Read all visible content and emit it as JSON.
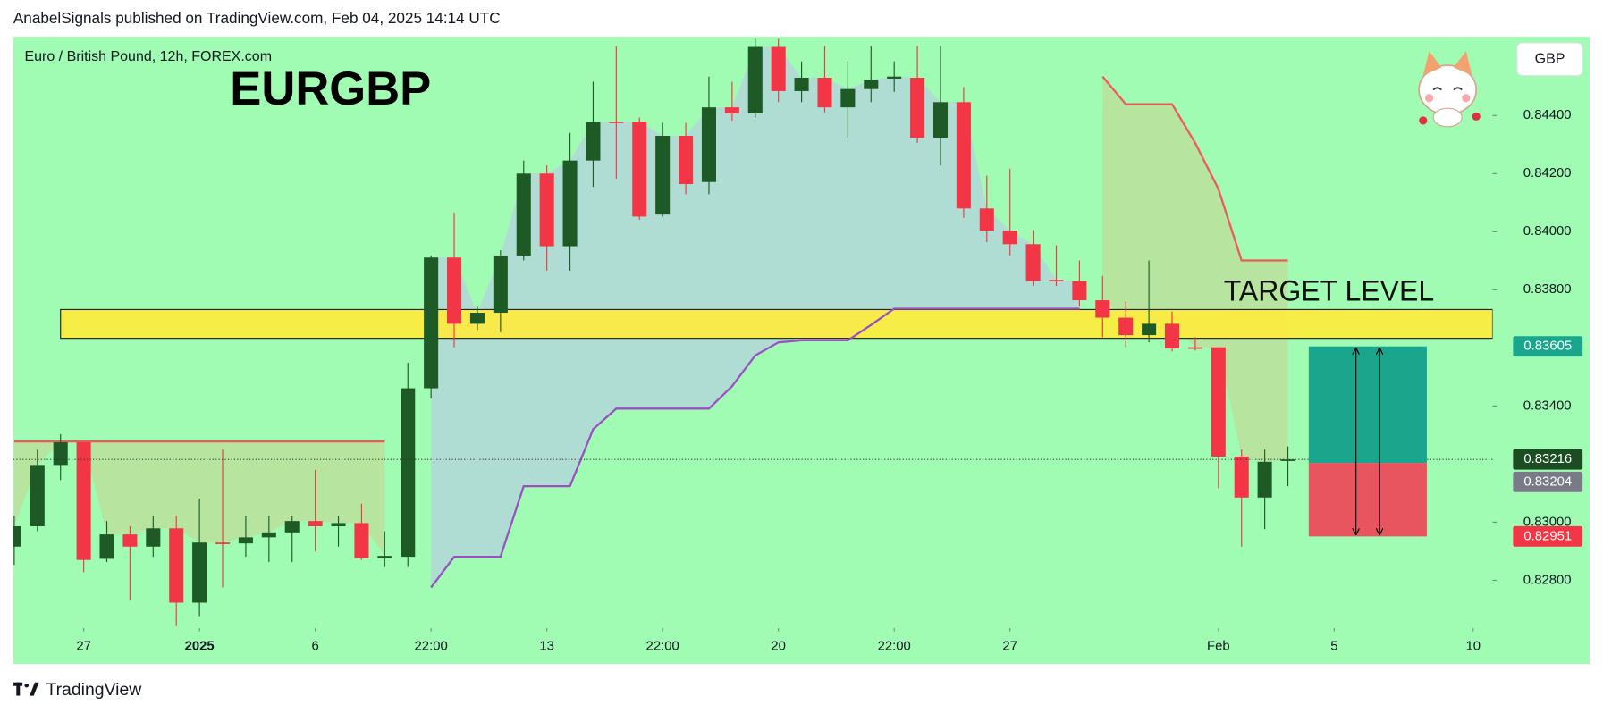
{
  "header": "AnabelSignals published on TradingView.com, Feb 04, 2025 14:14 UTC",
  "footer": "TradingView",
  "chart_data": {
    "type": "candlestick",
    "title": "EURGBP",
    "symbol_label": "Euro / British Pound, 12h, FOREX.com",
    "currency": "GBP",
    "grid": false,
    "up_color": "#1e5a25",
    "down_color": "#f23645",
    "x": [
      0,
      1,
      2,
      3,
      4,
      5,
      6,
      7,
      8,
      9,
      10,
      11,
      12,
      13,
      14,
      15,
      16,
      17,
      18,
      19,
      20,
      21,
      22,
      23,
      24,
      25,
      26,
      27,
      28,
      29,
      30,
      31,
      32,
      33,
      34,
      35,
      36,
      37,
      38,
      39,
      40,
      41,
      42,
      43,
      44,
      45,
      46,
      47,
      48,
      49,
      50,
      51,
      52,
      53,
      54,
      55
    ],
    "open": [
      0.82916,
      0.82986,
      0.83197,
      0.83275,
      0.82874,
      0.82958,
      0.82916,
      0.82979,
      0.82723,
      0.8293,
      0.82927,
      0.82948,
      0.82965,
      0.83004,
      0.82986,
      0.82997,
      0.82877,
      0.82881,
      0.83461,
      0.83911,
      0.83683,
      0.83721,
      0.83918,
      0.842,
      0.8395,
      0.84245,
      0.84379,
      0.84379,
      0.84059,
      0.8433,
      0.84171,
      0.84428,
      0.84407,
      0.84636,
      0.84484,
      0.8453,
      0.84428,
      0.84491,
      0.84527,
      0.8453,
      0.84323,
      0.84446,
      0.8408,
      0.84003,
      0.83957,
      0.83834,
      0.8383,
      0.83764,
      0.83704,
      0.83644,
      0.83683,
      0.83602,
      0.83602,
      0.83226,
      0.83085,
      0.83211
    ],
    "high": [
      0.83022,
      0.8325,
      0.83303,
      0.83275,
      0.83004,
      0.82986,
      0.83022,
      0.83022,
      0.83081,
      0.8325,
      0.83022,
      0.83022,
      0.83022,
      0.8318,
      0.83022,
      0.83064,
      0.82969,
      0.83549,
      0.83918,
      0.84066,
      0.83742,
      0.83936,
      0.84245,
      0.84228,
      0.8434,
      0.84516,
      0.84639,
      0.84393,
      0.84375,
      0.84375,
      0.84534,
      0.84516,
      0.84664,
      0.84664,
      0.84586,
      0.84639,
      0.84586,
      0.84639,
      0.84586,
      0.84639,
      0.84639,
      0.84498,
      0.84193,
      0.84217,
      0.84006,
      0.83953,
      0.83901,
      0.83848,
      0.8376,
      0.83901,
      0.83725,
      0.83637,
      0.83602,
      0.8325,
      0.8325,
      0.83261
    ],
    "low": [
      0.82853,
      0.82969,
      0.83145,
      0.82828,
      0.82863,
      0.8273,
      0.82881,
      0.82642,
      0.82677,
      0.82775,
      0.82881,
      0.82863,
      0.82863,
      0.82899,
      0.82916,
      0.8287,
      0.82846,
      0.82846,
      0.83426,
      0.83602,
      0.83662,
      0.83654,
      0.83901,
      0.83866,
      0.83866,
      0.84154,
      0.84182,
      0.84041,
      0.84052,
      0.84129,
      0.84129,
      0.84382,
      0.84393,
      0.84446,
      0.84446,
      0.84411,
      0.84323,
      0.84446,
      0.84481,
      0.84305,
      0.84228,
      0.84048,
      0.83964,
      0.83918,
      0.83813,
      0.83813,
      0.83742,
      0.83637,
      0.83602,
      0.83619,
      0.83588,
      0.83591,
      0.83117,
      0.82916,
      0.82976,
      0.83124
    ],
    "close": [
      0.82986,
      0.83197,
      0.83275,
      0.8287,
      0.82958,
      0.82916,
      0.82979,
      0.82723,
      0.8293,
      0.82927,
      0.82948,
      0.82965,
      0.83004,
      0.82986,
      0.82997,
      0.82877,
      0.82884,
      0.83461,
      0.83911,
      0.83683,
      0.83721,
      0.83918,
      0.842,
      0.8395,
      0.84245,
      0.84379,
      0.84375,
      0.84052,
      0.8433,
      0.84164,
      0.84428,
      0.84407,
      0.84636,
      0.84484,
      0.8453,
      0.84428,
      0.84491,
      0.84523,
      0.84534,
      0.84323,
      0.84446,
      0.8408,
      0.84003,
      0.83957,
      0.8383,
      0.8383,
      0.83764,
      0.83704,
      0.83644,
      0.83683,
      0.83598,
      0.83598,
      0.83226,
      0.83085,
      0.83208,
      0.83216
    ],
    "lines": [
      {
        "color": "#9b4fc2",
        "fill": "rgba(190,196,236,0.55)",
        "values": [
          null,
          null,
          null,
          null,
          null,
          null,
          null,
          null,
          null,
          null,
          null,
          null,
          null,
          null,
          null,
          null,
          null,
          null,
          0.82775,
          0.82881,
          0.82881,
          0.82881,
          0.83124,
          0.83124,
          0.83124,
          0.8332,
          0.83391,
          0.83391,
          0.83391,
          0.83391,
          0.83391,
          0.83468,
          0.83574,
          0.83619,
          0.83626,
          0.83626,
          0.83626,
          0.83679,
          0.83735,
          0.83735,
          0.83735,
          0.83735,
          0.83735,
          0.83735,
          0.83735,
          0.83735,
          0.83735,
          null,
          null,
          null,
          null,
          null,
          null,
          null,
          null,
          null
        ]
      },
      {
        "color": "#f0585a",
        "fill": "rgba(205,208,140,0.5)",
        "values": [
          0.83278,
          0.83278,
          0.83278,
          0.83278,
          0.83278,
          0.83278,
          0.83278,
          0.83278,
          0.83278,
          0.83278,
          0.83278,
          0.83278,
          0.83278,
          0.83278,
          0.83278,
          0.83278,
          0.83278,
          null,
          null,
          null,
          null,
          null,
          null,
          null,
          null,
          null,
          null,
          null,
          null,
          null,
          null,
          null,
          null,
          null,
          null,
          null,
          null,
          null,
          null,
          null,
          null,
          null,
          null,
          null,
          null,
          null,
          null,
          0.84534,
          0.84439,
          0.84439,
          0.84439,
          0.84305,
          0.84147,
          0.83901,
          0.83901,
          0.83901
        ]
      }
    ],
    "zone": {
      "label": "TARGET LEVEL",
      "low": 0.83633,
      "high": 0.83732,
      "x_start": 2,
      "color": "#ffeb3b"
    },
    "position": {
      "x": [
        55.9,
        61
      ],
      "target": 0.83605,
      "entry": 0.83204,
      "stop": 0.82951,
      "profit_color": "#1aa68d",
      "loss_color": "#e8555f"
    },
    "last_price": 0.83216,
    "xlim": [
      -0.04,
      63.84
    ],
    "ylim": [
      0.82635,
      0.84671
    ],
    "xticks": [
      {
        "value": 3,
        "label": "27"
      },
      {
        "value": 8,
        "label": "2025",
        "bold": true
      },
      {
        "value": 13,
        "label": "6"
      },
      {
        "value": 18,
        "label": "22:00"
      },
      {
        "value": 23,
        "label": "13"
      },
      {
        "value": 28,
        "label": "22:00"
      },
      {
        "value": 33,
        "label": "20"
      },
      {
        "value": 38,
        "label": "22:00"
      },
      {
        "value": 43,
        "label": "27"
      },
      {
        "value": 52,
        "label": "Feb"
      },
      {
        "value": 57,
        "label": "5"
      },
      {
        "value": 63,
        "label": "10"
      }
    ],
    "yticks": [
      {
        "value": 0.844,
        "label": "0.84400"
      },
      {
        "value": 0.842,
        "label": "0.84200"
      },
      {
        "value": 0.84,
        "label": "0.84000"
      },
      {
        "value": 0.838,
        "label": "0.83800"
      },
      {
        "value": 0.834,
        "label": "0.83400"
      },
      {
        "value": 0.83,
        "label": "0.83000"
      },
      {
        "value": 0.828,
        "label": "0.82800"
      }
    ]
  }
}
